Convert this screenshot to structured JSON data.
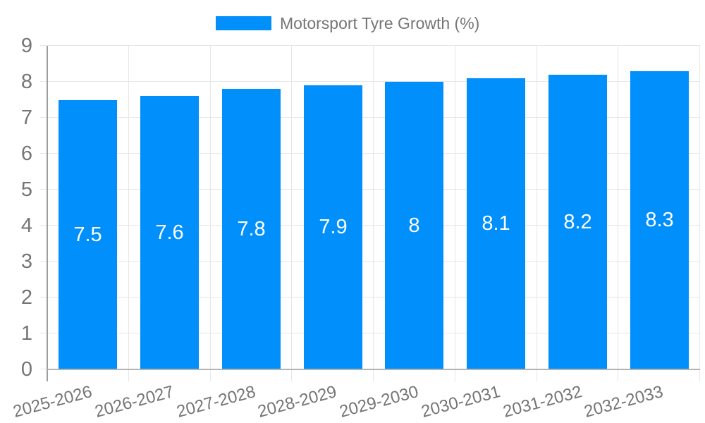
{
  "legend": {
    "series_label": "Motorsport Tyre Growth (%)"
  },
  "colors": {
    "bar": "#008FFB",
    "grid": "#E6E6E6",
    "y_axis_line": "#9E9E9E",
    "baseline": "#B3B3B3",
    "axis_text": "#757575",
    "data_label": "#FFFFFF",
    "background": "#FFFFFF"
  },
  "chart_data": {
    "type": "bar",
    "title": "Motorsport Tyre Growth (%)",
    "series_name": "Motorsport Tyre Growth (%)",
    "categories": [
      "2025-2026",
      "2026-2027",
      "2027-2028",
      "2028-2029",
      "2029-2030",
      "2030-2031",
      "2031-2032",
      "2032-2033"
    ],
    "values": [
      7.5,
      7.6,
      7.8,
      7.9,
      8,
      8.1,
      8.2,
      8.3
    ],
    "data_labels": [
      "7.5",
      "7.6",
      "7.8",
      "7.9",
      "8",
      "8.1",
      "8.2",
      "8.3"
    ],
    "xlabel": "",
    "ylabel": "",
    "ylim": [
      0,
      9
    ],
    "y_ticks": [
      0,
      1,
      2,
      3,
      4,
      5,
      6,
      7,
      8,
      9
    ],
    "grid": "on",
    "legend_position": "top",
    "x_label_rotation_deg": -15
  }
}
